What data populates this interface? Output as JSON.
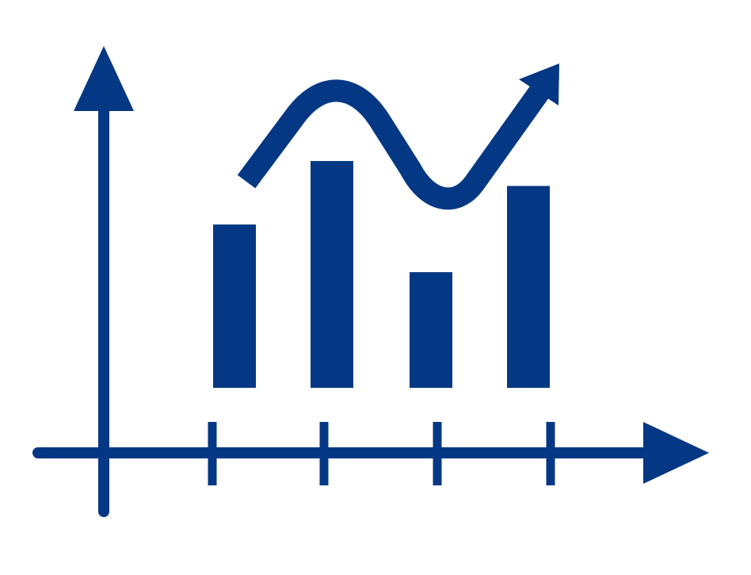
{
  "icon": {
    "name": "bar-chart-with-trend-arrow-icon",
    "color": "#053884",
    "background": "#ffffff"
  },
  "bars": {
    "count": 4,
    "relative_heights": [
      0.72,
      1.0,
      0.51,
      0.89
    ]
  },
  "x_axis_ticks": {
    "count": 4
  },
  "trend_line": {
    "shape": "wave-up",
    "arrow": "arrowhead-up-right"
  }
}
